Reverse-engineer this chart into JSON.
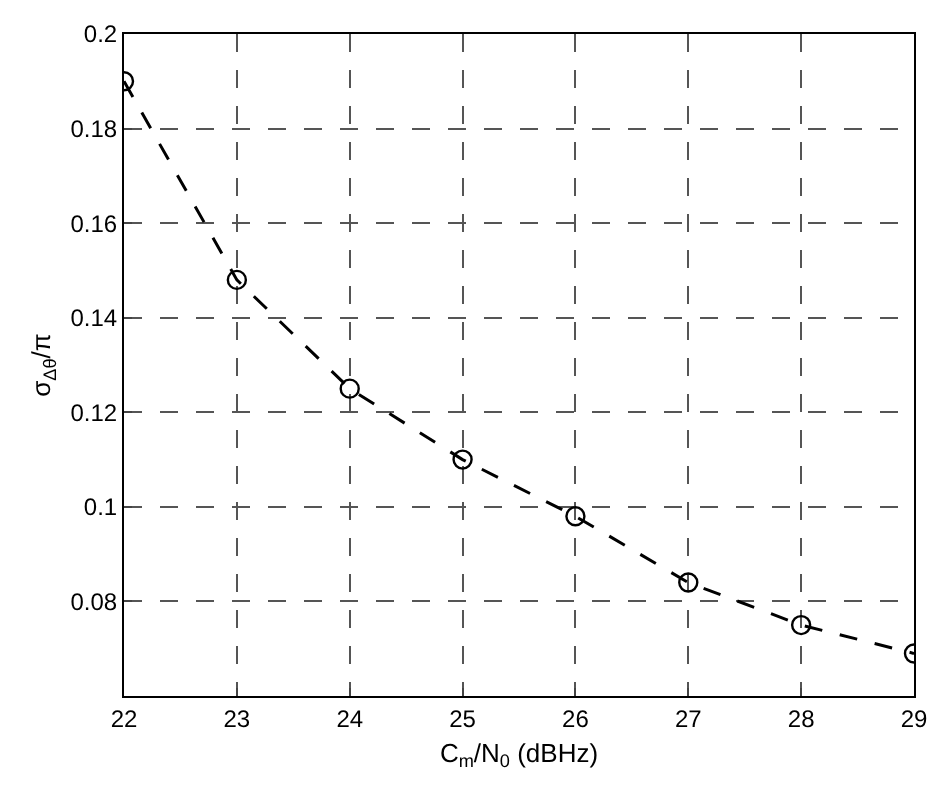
{
  "chart_data": {
    "type": "line",
    "xlabel": "C$_{m}$/N$_{0}$ (dBHz)",
    "ylabel": "σ$_{Δθ}$/π",
    "x": [
      22,
      23,
      24,
      25,
      26,
      27,
      28,
      29
    ],
    "series": [
      {
        "color": "#000000",
        "values": [
          0.19,
          0.148,
          0.125,
          0.11,
          0.098,
          0.084,
          0.075,
          0.069
        ]
      }
    ],
    "xlim": [
      22,
      29
    ],
    "xticks": [
      22,
      23,
      24,
      25,
      26,
      27,
      28,
      29
    ],
    "ylim": [
      0.06,
      0.2
    ],
    "yticks": [
      {
        "value": 0.06,
        "label": null
      },
      0.08,
      0.1,
      0.12,
      0.14,
      0.16,
      0.18,
      0.2
    ],
    "grid": true,
    "legend": false,
    "marker": "circle",
    "line_style": "dashed"
  }
}
